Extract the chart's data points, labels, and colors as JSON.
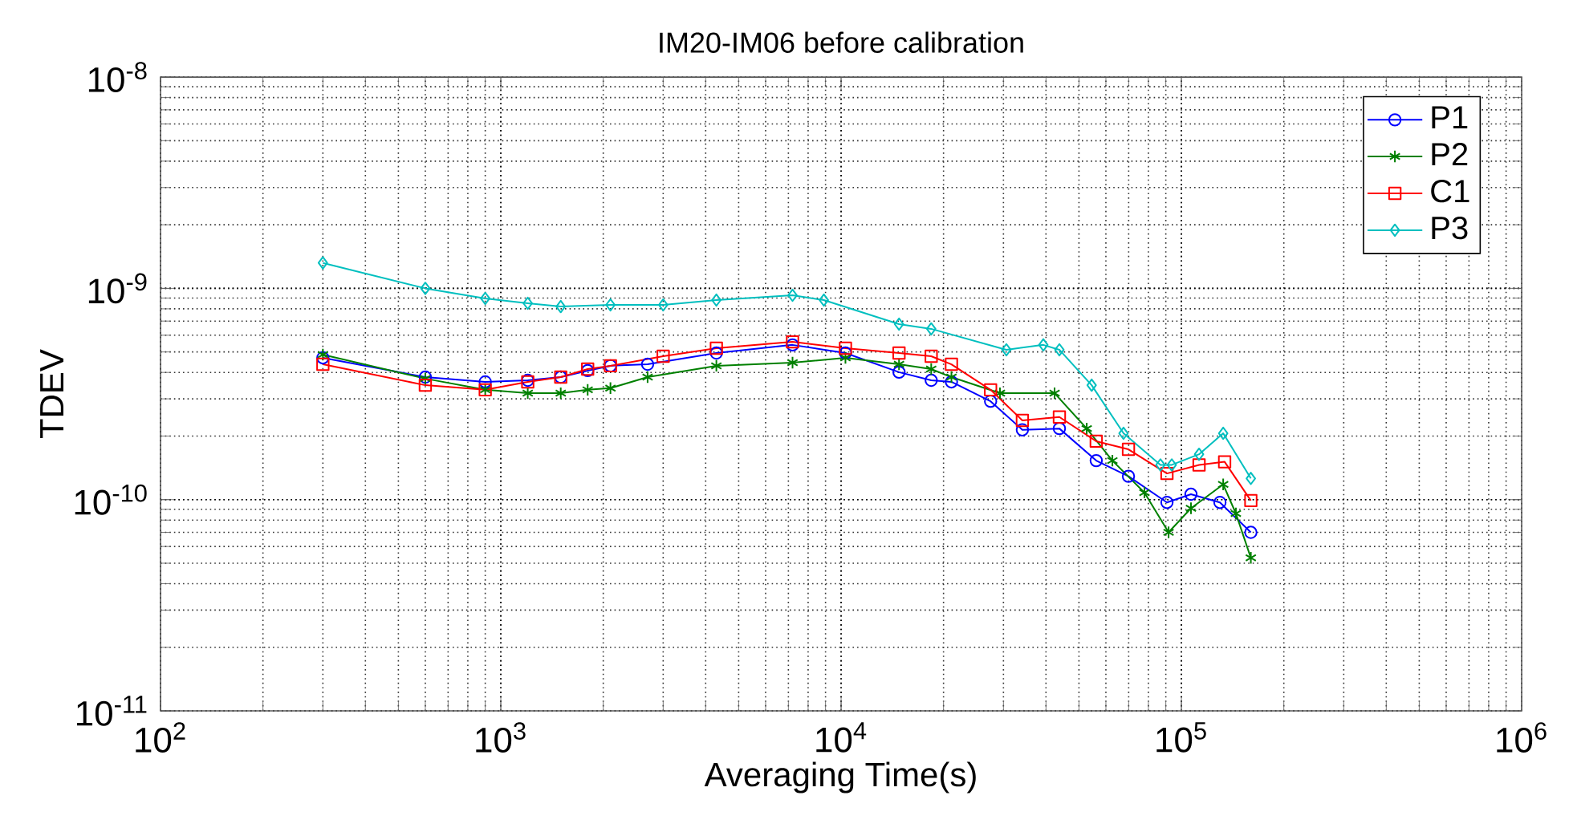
{
  "chart_data": {
    "type": "line",
    "title": "IM20-IM06 before calibration",
    "xlabel": "Averaging Time(s)",
    "ylabel": "TDEV",
    "log": "xy",
    "grid": true,
    "legend": "top right",
    "xlim": [
      100,
      1000000
    ],
    "ylim": [
      1e-11,
      1e-08
    ],
    "xticks": [
      {
        "value": 100,
        "label": "10$^{2}$"
      },
      {
        "value": 1000,
        "label": "10$^{3}$"
      },
      {
        "value": 10000,
        "label": "10$^{4}$"
      },
      {
        "value": 100000,
        "label": "10$^{5}$"
      },
      {
        "value": 1000000,
        "label": "10$^{6}$"
      }
    ],
    "yticks": [
      {
        "value": 1e-11,
        "label": "10$^{-11}$"
      },
      {
        "value": 1e-10,
        "label": "10$^{-10}$"
      },
      {
        "value": 1e-09,
        "label": "10$^{-9}$"
      },
      {
        "value": 1e-08,
        "label": "10$^{-8}$"
      }
    ],
    "series": [
      {
        "name": "P1",
        "color": "#0000ff",
        "marker": "circle",
        "x": [
          300,
          600,
          900,
          1200,
          1500,
          1800,
          2100,
          2700,
          4300,
          7200,
          10300,
          14800,
          18400,
          21100,
          27500,
          34100,
          43800,
          56200,
          69900,
          90700,
          106700,
          129800,
          160000
        ],
        "values": [
          4.69e-10,
          3.8e-10,
          3.61e-10,
          3.67e-10,
          3.8e-10,
          4.08e-10,
          4.3e-10,
          4.37e-10,
          4.94e-10,
          5.4e-10,
          4.94e-10,
          4.01e-10,
          3.67e-10,
          3.61e-10,
          2.92e-10,
          2.14e-10,
          2.17e-10,
          1.53e-10,
          1.29e-10,
          9.7e-11,
          1.06e-10,
          9.7e-11,
          7e-11
        ]
      },
      {
        "name": "P2",
        "color": "#008000",
        "marker": "cross",
        "x": [
          300,
          600,
          900,
          1200,
          1500,
          1800,
          2100,
          2700,
          4300,
          7200,
          10300,
          14800,
          18400,
          21100,
          29300,
          42400,
          52700,
          62700,
          77900,
          91700,
          106700,
          132700,
          144600,
          160000
        ],
        "values": [
          4.86e-10,
          3.74e-10,
          3.31e-10,
          3.19e-10,
          3.19e-10,
          3.31e-10,
          3.37e-10,
          3.8e-10,
          4.3e-10,
          4.45e-10,
          4.69e-10,
          4.37e-10,
          4.15e-10,
          3.8e-10,
          3.19e-10,
          3.19e-10,
          2.17e-10,
          1.53e-10,
          1.08e-10,
          7e-11,
          9.1e-11,
          1.18e-10,
          8.6e-11,
          5.3e-11
        ]
      },
      {
        "name": "C1",
        "color": "#ff0000",
        "marker": "square",
        "x": [
          300,
          600,
          900,
          1200,
          1500,
          1800,
          2100,
          3000,
          4300,
          7200,
          10300,
          14800,
          18400,
          21100,
          27500,
          34100,
          43800,
          56200,
          69900,
          90700,
          112700,
          134000,
          160000
        ],
        "values": [
          4.37e-10,
          3.48e-10,
          3.31e-10,
          3.61e-10,
          3.8e-10,
          4.15e-10,
          4.3e-10,
          4.77e-10,
          5.21e-10,
          5.58e-10,
          5.21e-10,
          4.94e-10,
          4.77e-10,
          4.37e-10,
          3.31e-10,
          2.37e-10,
          2.46e-10,
          1.89e-10,
          1.73e-10,
          1.33e-10,
          1.46e-10,
          1.51e-10,
          9.9e-11
        ]
      },
      {
        "name": "P3",
        "color": "#00bfbf",
        "marker": "diamond",
        "x": [
          300,
          600,
          900,
          1200,
          1500,
          2100,
          3000,
          4300,
          7200,
          8900,
          14800,
          18400,
          30600,
          39300,
          43800,
          54500,
          67600,
          86800,
          93700,
          112700,
          132700,
          160000
        ],
        "values": [
          1.32e-09,
          1e-09,
          8.96e-10,
          8.5e-10,
          8.2e-10,
          8.35e-10,
          8.35e-10,
          8.8e-10,
          9.27e-10,
          8.8e-10,
          6.77e-10,
          6.43e-10,
          5.12e-10,
          5.4e-10,
          5.12e-10,
          3.48e-10,
          2.06e-10,
          1.46e-10,
          1.46e-10,
          1.64e-10,
          2.06e-10,
          1.26e-10
        ]
      }
    ]
  }
}
